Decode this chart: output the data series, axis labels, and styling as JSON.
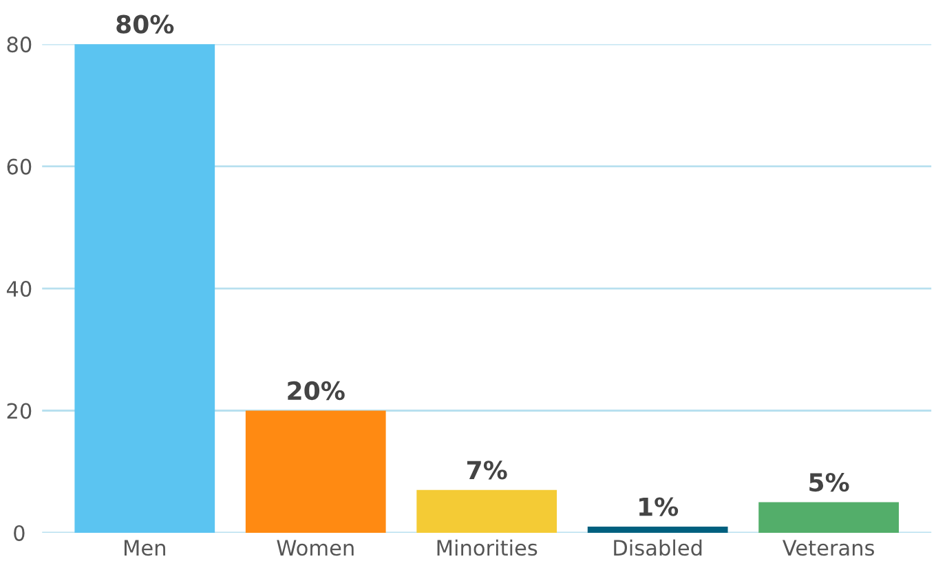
{
  "chart_data": {
    "type": "bar",
    "categories": [
      "Men",
      "Women",
      "Minorities",
      "Disabled",
      "Veterans"
    ],
    "values": [
      80,
      20,
      7,
      1,
      5
    ],
    "colors": [
      "#5bc4f1",
      "#ff8a12",
      "#f4cb35",
      "#00607f",
      "#53ae6a"
    ],
    "value_labels": [
      "80%",
      "20%",
      "7%",
      "1%",
      "5%"
    ],
    "ylim": [
      0,
      80
    ],
    "yticks": [
      0,
      20,
      40,
      60,
      80
    ],
    "grid": "y",
    "legend": false
  }
}
